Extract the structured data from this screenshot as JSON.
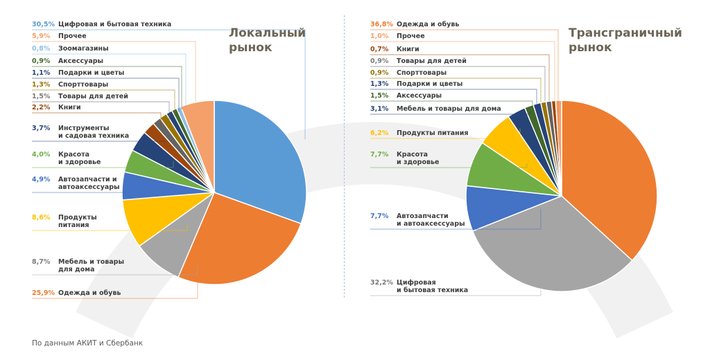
{
  "source": "По данным АКИТ и Сбербанк",
  "colors": {
    "blue": "#5b9bd5",
    "orange": "#ed7d31",
    "lightorange": "#f4a06a",
    "gray": "#a5a5a5",
    "yellow": "#ffc000",
    "darkblue": "#4472c4",
    "green": "#70ad47",
    "navy": "#264478",
    "brown": "#9e480e",
    "olive": "#997300",
    "darkgray": "#636363",
    "darkgreen": "#43682b",
    "lightblue": "#8fbfe4",
    "bronze": "#c0863e"
  },
  "chart_data": [
    {
      "type": "pie",
      "title": "Локальный рынок",
      "title_lines": [
        "Локальный",
        "рынок"
      ],
      "slices": [
        {
          "value": 30.5,
          "pct": "30,5%",
          "label": [
            "Цифровая и бытовая техника"
          ],
          "color": "#5b9bd5"
        },
        {
          "value": 25.9,
          "pct": "25,9%",
          "label": [
            "Одежда и обувь"
          ],
          "color": "#ed7d31"
        },
        {
          "value": 8.7,
          "pct": "8,7%",
          "label": [
            "Мебель и товары",
            "для дома"
          ],
          "color": "#a5a5a5"
        },
        {
          "value": 8.6,
          "pct": "8,6%",
          "label": [
            "Продукты",
            "питания"
          ],
          "color": "#ffc000"
        },
        {
          "value": 4.9,
          "pct": "4,9%",
          "label": [
            "Автозапчасти и",
            "автоаксессуары"
          ],
          "color": "#4472c4"
        },
        {
          "value": 4.0,
          "pct": "4,0%",
          "label": [
            "Красота",
            "и здоровье"
          ],
          "color": "#70ad47"
        },
        {
          "value": 3.7,
          "pct": "3,7%",
          "label": [
            "Инструменты",
            "и садовая техника"
          ],
          "color": "#264478"
        },
        {
          "value": 2.2,
          "pct": "2,2%",
          "label": [
            "Книги"
          ],
          "color": "#9e480e"
        },
        {
          "value": 1.5,
          "pct": "1,5%",
          "label": [
            "Товары для детей"
          ],
          "color": "#636363"
        },
        {
          "value": 1.3,
          "pct": "1,3%",
          "label": [
            "Спорттовары"
          ],
          "color": "#997300"
        },
        {
          "value": 1.1,
          "pct": "1,1%",
          "label": [
            "Подарки и цветы"
          ],
          "color": "#264478"
        },
        {
          "value": 0.9,
          "pct": "0,9%",
          "label": [
            "Аксессуары"
          ],
          "color": "#43682b"
        },
        {
          "value": 0.8,
          "pct": "0,8%",
          "label": [
            "Зоомагазины"
          ],
          "color": "#8fbfe4"
        },
        {
          "value": 5.9,
          "pct": "5,9%",
          "label": [
            "Прочее"
          ],
          "color": "#f4a06a"
        }
      ]
    },
    {
      "type": "pie",
      "title": "Трансграничный рынок",
      "title_lines": [
        "Трансграничный",
        "рынок"
      ],
      "slices": [
        {
          "value": 36.8,
          "pct": "36,8%",
          "label": [
            "Одежда и обувь"
          ],
          "color": "#ed7d31"
        },
        {
          "value": 32.2,
          "pct": "32,2%",
          "label": [
            "Цифровая",
            "и бытовая техника"
          ],
          "color": "#a5a5a5"
        },
        {
          "value": 7.7,
          "pct": "7,7%",
          "label": [
            "Автозапчасти",
            "и автоаксессуары"
          ],
          "color": "#4472c4"
        },
        {
          "value": 7.7,
          "pct": "7,7%",
          "label": [
            "Красота",
            "и здоровье"
          ],
          "color": "#70ad47"
        },
        {
          "value": 6.2,
          "pct": "6,2%",
          "label": [
            "Продукты питания"
          ],
          "color": "#ffc000"
        },
        {
          "value": 3.1,
          "pct": "3,1%",
          "label": [
            "Мебель и товары для дома"
          ],
          "color": "#264478"
        },
        {
          "value": 1.5,
          "pct": "1,5%",
          "label": [
            "Аксессуары"
          ],
          "color": "#43682b"
        },
        {
          "value": 1.3,
          "pct": "1,3%",
          "label": [
            "Подарки и цветы"
          ],
          "color": "#264478"
        },
        {
          "value": 0.9,
          "pct": "0,9%",
          "label": [
            "Спорттовары"
          ],
          "color": "#997300"
        },
        {
          "value": 0.9,
          "pct": "0,9%",
          "label": [
            "Товары для детей"
          ],
          "color": "#636363"
        },
        {
          "value": 0.7,
          "pct": "0,7%",
          "label": [
            "Книги"
          ],
          "color": "#9e480e"
        },
        {
          "value": 1.0,
          "pct": "1,0%",
          "label": [
            "Прочее"
          ],
          "color": "#f4a06a"
        }
      ]
    }
  ]
}
